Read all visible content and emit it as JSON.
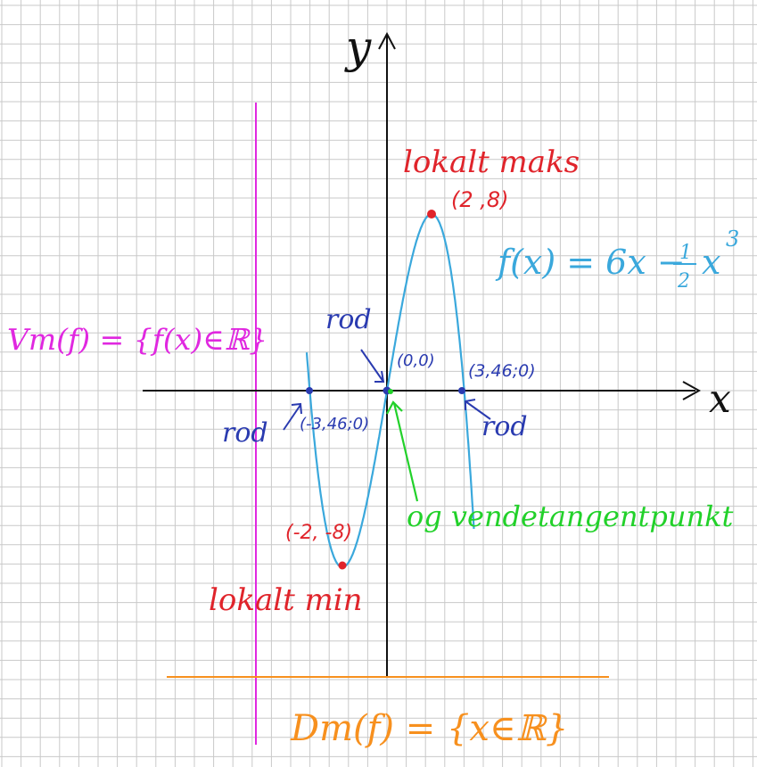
{
  "axes": {
    "x_label": "x",
    "y_label": "y"
  },
  "function_label": {
    "prefix": "f(x) = 6x −",
    "frac_num": "1",
    "frac_den": "2",
    "suffix": "x",
    "exponent": "3"
  },
  "points": {
    "max_title": "lokalt maks",
    "max_coords": "(2 ,8)",
    "min_title": "lokalt min",
    "min_coords": "(-2, -8)",
    "origin_coords": "(0,0)",
    "root_right_coords": "(3,46;0)",
    "root_left_coords": "(-3,46;0)",
    "root_label": "rod",
    "inflection_label": "og vendetangentpunkt"
  },
  "ranges": {
    "value_range": "Vm(f) = {f(x)∈ℝ}",
    "domain": "Dm(f) = {x∈ℝ}"
  },
  "colors": {
    "grid": "#c9c9c9",
    "curve": "#3aa8dc",
    "red": "#e0242b",
    "navy": "#2a3bb0",
    "green": "#22d12a",
    "magenta": "#e028e0",
    "orange": "#f7901e",
    "axis": "#111111"
  },
  "chart_data": {
    "type": "line",
    "function": "f(x) = 6x - 1/2 x^3",
    "x": [
      -3.6,
      -3.46,
      -3,
      -2.5,
      -2,
      -1.5,
      -1,
      -0.5,
      0,
      0.5,
      1,
      1.5,
      2,
      2.5,
      3,
      3.46,
      3.9
    ],
    "y": [
      1.73,
      0,
      -4.5,
      -7.19,
      -8,
      -7.31,
      -5.5,
      -2.94,
      0,
      2.94,
      5.5,
      7.31,
      8,
      7.19,
      4.5,
      0,
      -6.26
    ],
    "key_points": [
      {
        "x": 2,
        "y": 8,
        "kind": "lokalt maks"
      },
      {
        "x": -2,
        "y": -8,
        "kind": "lokalt min"
      },
      {
        "x": 0,
        "y": 0,
        "kind": "rod / vendetangentpunkt"
      },
      {
        "x": 3.46,
        "y": 0,
        "kind": "rod"
      },
      {
        "x": -3.46,
        "y": 0,
        "kind": "rod"
      }
    ]
  }
}
